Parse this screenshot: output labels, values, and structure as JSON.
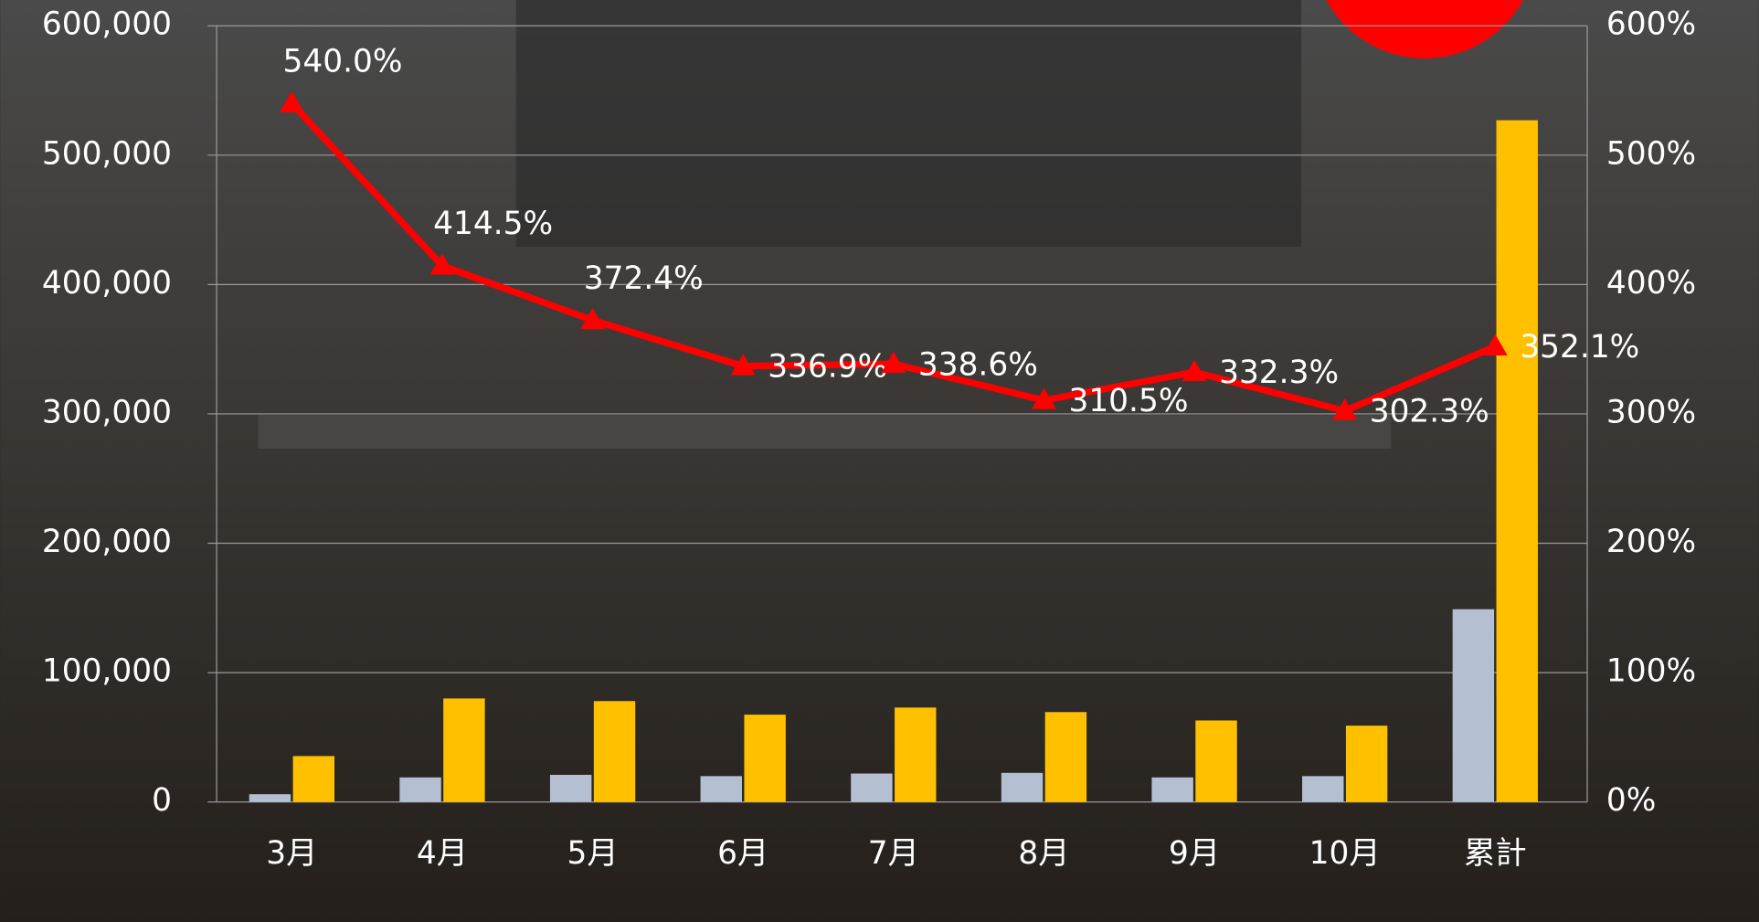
{
  "chart_data": {
    "type": "bar",
    "categories": [
      "3月",
      "4月",
      "5月",
      "6月",
      "7月",
      "8月",
      "9月",
      "10月",
      "累計"
    ],
    "series": [
      {
        "color": "#b4bfd2",
        "values": [
          6000,
          19000,
          21000,
          20000,
          22000,
          22500,
          19000,
          20000,
          149000
        ]
      },
      {
        "color": "#ffc000",
        "values": [
          35500,
          80000,
          78000,
          67500,
          73000,
          69500,
          63000,
          59000,
          527000
        ]
      },
      {
        "type": "line",
        "axis": "y2",
        "color": "#ff0000",
        "values": [
          540,
          414.5,
          372.4,
          336.9,
          338.6,
          310.5,
          332.3,
          302.3,
          352.1
        ],
        "value_labels": [
          "540.0%",
          "414.5%",
          "372.4%",
          "336.9%",
          "338.6%",
          "310.5%",
          "332.3%",
          "302.3%",
          "352.1%"
        ]
      }
    ],
    "ylim": [
      0,
      600000
    ],
    "yticks": [
      0,
      {
        "value": 100000,
        "label": "100,000"
      },
      {
        "value": 200000,
        "label": "200,000"
      },
      {
        "value": 300000,
        "label": "300,000"
      },
      {
        "value": 400000,
        "label": "400,000"
      },
      {
        "value": 500000,
        "label": "500,000"
      },
      {
        "value": 600000,
        "label": "600,000"
      }
    ],
    "y2lim": [
      0,
      600
    ],
    "y2ticks": [
      {
        "value": 0,
        "label": "0%"
      },
      {
        "value": 100,
        "label": "100%"
      },
      {
        "value": 200,
        "label": "200%"
      },
      {
        "value": 300,
        "label": "300%"
      },
      {
        "value": 400,
        "label": "400%"
      },
      {
        "value": 500,
        "label": "500%"
      },
      {
        "value": 600,
        "label": "600%"
      }
    ],
    "grid": true
  }
}
